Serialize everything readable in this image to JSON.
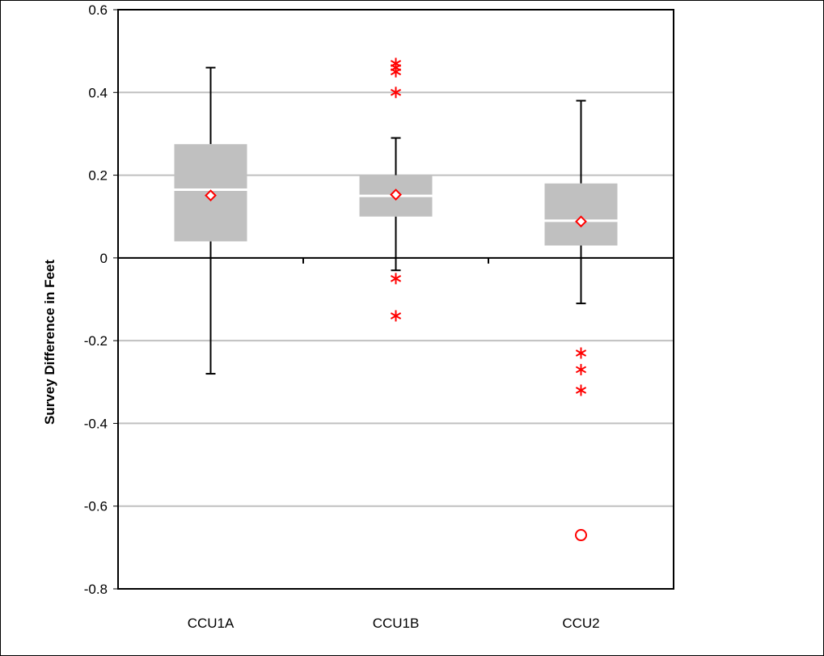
{
  "chart_data": {
    "type": "box",
    "title": "",
    "xlabel": "",
    "ylabel": "Survey Difference in Feet",
    "ylim": [
      -0.8,
      0.6
    ],
    "yticks": [
      -0.8,
      -0.6,
      -0.4,
      -0.2,
      0,
      0.2,
      0.4,
      0.6
    ],
    "ytick_labels": [
      "-0.8",
      "-0.6",
      "-0.4",
      "-0.2",
      "0",
      "0.2",
      "0.4",
      "0.6"
    ],
    "grid": "horizontal",
    "categories": [
      "CCU1A",
      "CCU1B",
      "CCU2"
    ],
    "boxes": [
      {
        "category": "CCU1A",
        "whisker_low": -0.28,
        "q1": 0.04,
        "median": 0.165,
        "q3": 0.275,
        "whisker_high": 0.46,
        "mean": 0.151,
        "outliers_mild": [],
        "outliers_extreme": []
      },
      {
        "category": "CCU1B",
        "whisker_low": -0.03,
        "q1": 0.1,
        "median": 0.15,
        "q3": 0.2,
        "whisker_high": 0.29,
        "mean": 0.153,
        "outliers_mild": [
          0.47,
          0.46,
          0.45,
          0.4,
          -0.05,
          -0.14
        ],
        "outliers_extreme": []
      },
      {
        "category": "CCU2",
        "whisker_low": -0.11,
        "q1": 0.03,
        "median": 0.09,
        "q3": 0.18,
        "whisker_high": 0.38,
        "mean": 0.088,
        "outliers_mild": [
          -0.23,
          -0.27,
          -0.32
        ],
        "outliers_extreme": [
          -0.67
        ]
      }
    ],
    "colors": {
      "box_fill": "#c0c0c0",
      "median_line": "#ffffff",
      "whisker": "#000000",
      "mean_marker": "#ff0000",
      "outlier": "#ff0000",
      "gridline": "#c0c0c0"
    }
  }
}
